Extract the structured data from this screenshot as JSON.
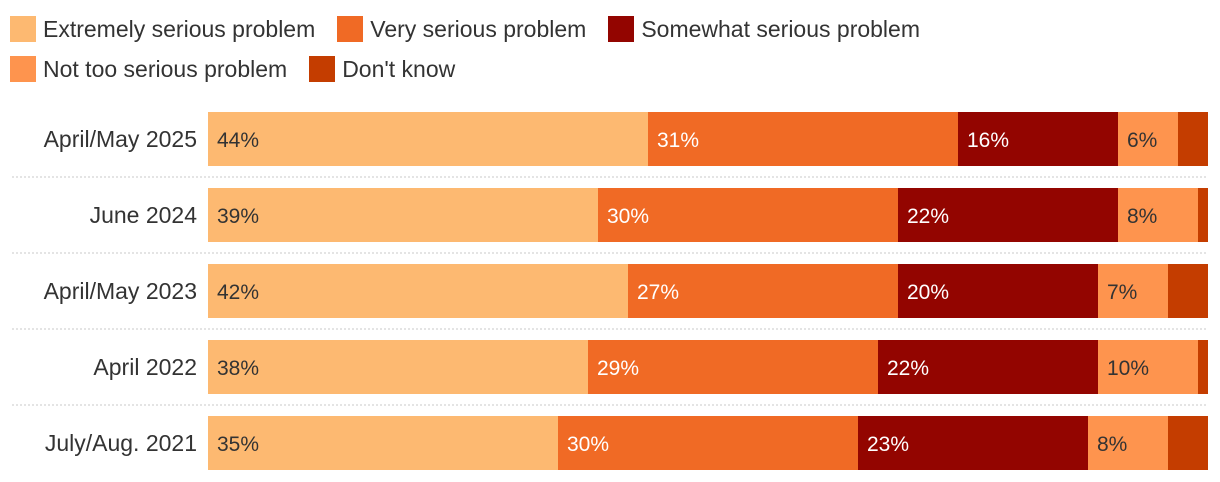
{
  "chart_data": {
    "type": "bar",
    "orientation": "horizontal",
    "stacked": true,
    "legend_position": "top",
    "categories": [
      "April/May 2025",
      "June 2024",
      "April/May 2023",
      "April 2022",
      "July/Aug. 2021"
    ],
    "series": [
      {
        "name": "Extremely serious problem",
        "color": "#FDB971",
        "label_color": "#333333",
        "values": [
          44,
          39,
          42,
          38,
          35
        ],
        "labels": [
          "44%",
          "39%",
          "42%",
          "38%",
          "35%"
        ]
      },
      {
        "name": "Very serious problem",
        "color": "#F06A25",
        "label_color": "#ffffff",
        "values": [
          31,
          30,
          27,
          29,
          30
        ],
        "labels": [
          "31%",
          "30%",
          "27%",
          "29%",
          "30%"
        ]
      },
      {
        "name": "Somewhat serious problem",
        "color": "#930500",
        "label_color": "#ffffff",
        "values": [
          16,
          22,
          20,
          22,
          23
        ],
        "labels": [
          "16%",
          "22%",
          "20%",
          "22%",
          "23%"
        ]
      },
      {
        "name": "Not too serious problem",
        "color": "#FE944E",
        "label_color": "#333333",
        "values": [
          6,
          8,
          7,
          10,
          8
        ],
        "labels": [
          "6%",
          "8%",
          "7%",
          "10%",
          "8%"
        ]
      },
      {
        "name": "Don't know",
        "color": "#C43D00",
        "label_color": "#ffffff",
        "values": [
          3,
          1,
          4,
          1,
          4
        ],
        "labels": [
          "",
          "",
          "",
          "",
          ""
        ]
      }
    ],
    "xlim": [
      0,
      100
    ]
  }
}
